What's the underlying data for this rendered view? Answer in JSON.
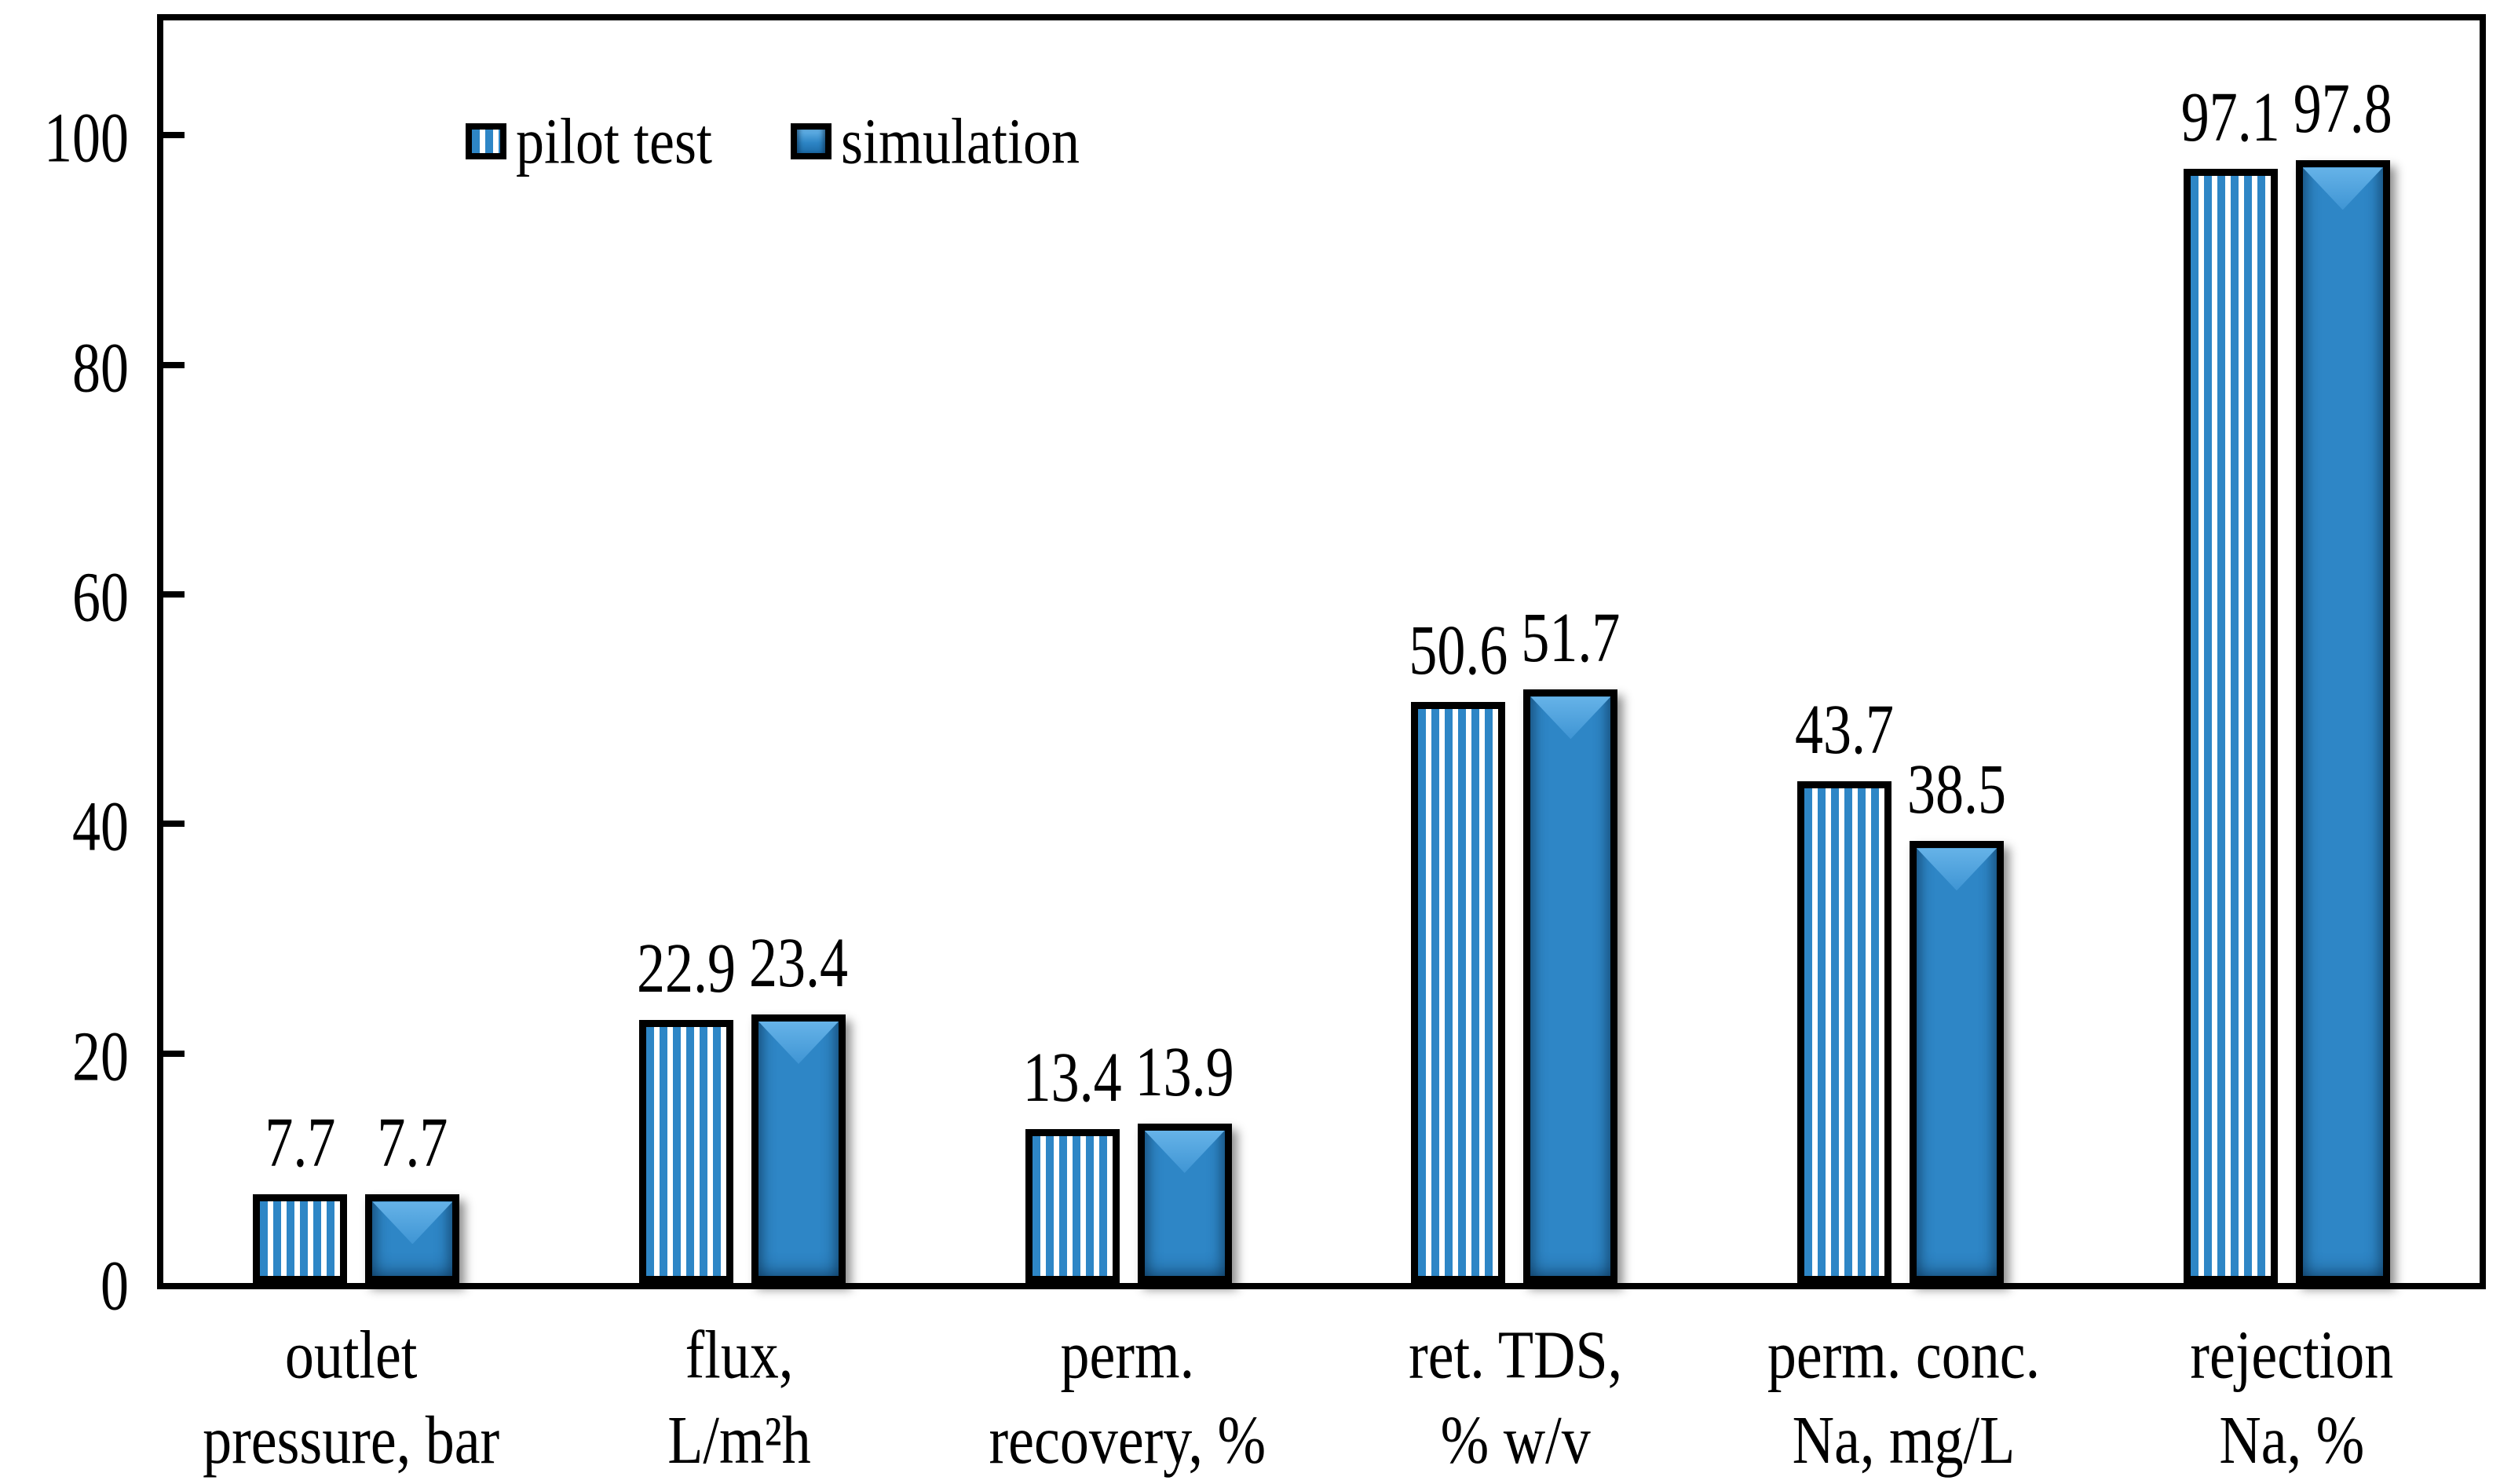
{
  "chart_data": {
    "type": "bar",
    "title": "",
    "xlabel": "",
    "ylabel": "",
    "ylim": [
      0,
      110
    ],
    "yticks": [
      0,
      20,
      40,
      60,
      80,
      100
    ],
    "grid": false,
    "legend_position": "top-left-inside",
    "categories": [
      [
        "outlet",
        "pressure, bar"
      ],
      [
        "flux,",
        "L/m²h"
      ],
      [
        "perm.",
        "recovery, %"
      ],
      [
        "ret. TDS,",
        "% w/v"
      ],
      [
        "perm. conc.",
        "Na, mg/L"
      ],
      [
        "rejection",
        "Na, %"
      ]
    ],
    "series": [
      {
        "name": "pilot test",
        "style": "striped",
        "values": [
          7.7,
          22.9,
          13.4,
          50.6,
          43.7,
          97.1
        ]
      },
      {
        "name": "simulation",
        "style": "solid",
        "values": [
          7.7,
          23.4,
          13.9,
          51.7,
          38.5,
          97.8
        ]
      }
    ],
    "colors": {
      "bar_blue": "#2E86C6",
      "bar_blue_highlight": "#66B3E8",
      "bar_blue_dark": "#1D6CA8",
      "stripe_background": "#FFFFFF",
      "axis_and_border": "#000000"
    }
  }
}
